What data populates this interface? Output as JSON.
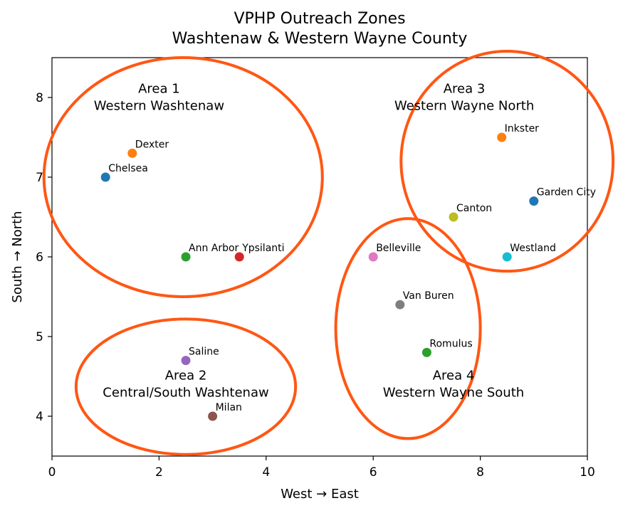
{
  "chart_data": {
    "type": "scatter",
    "title": [
      "VPHP Outreach Zones",
      "Washtenaw & Western Wayne County"
    ],
    "xlabel": "West → East",
    "ylabel": "South → North",
    "xlim": [
      0,
      10
    ],
    "ylim": [
      3.5,
      8.5
    ],
    "xticks": [
      0,
      2,
      4,
      6,
      8,
      10
    ],
    "yticks": [
      4,
      5,
      6,
      7,
      8
    ],
    "grid": false,
    "points": [
      {
        "name": "Chelsea",
        "x": 1.0,
        "y": 7.0,
        "color": "#1f77b4"
      },
      {
        "name": "Dexter",
        "x": 1.5,
        "y": 7.3,
        "color": "#ff7f0e"
      },
      {
        "name": "Ann Arbor",
        "x": 2.5,
        "y": 6.0,
        "color": "#2ca02c"
      },
      {
        "name": "Ypsilanti",
        "x": 3.5,
        "y": 6.0,
        "color": "#d62728"
      },
      {
        "name": "Saline",
        "x": 2.5,
        "y": 4.7,
        "color": "#9467bd"
      },
      {
        "name": "Milan",
        "x": 3.0,
        "y": 4.0,
        "color": "#8c564b"
      },
      {
        "name": "Belleville",
        "x": 6.0,
        "y": 6.0,
        "color": "#e377c2"
      },
      {
        "name": "Van Buren",
        "x": 6.5,
        "y": 5.4,
        "color": "#7f7f7f"
      },
      {
        "name": "Canton",
        "x": 7.5,
        "y": 6.5,
        "color": "#bcbd22"
      },
      {
        "name": "Westland",
        "x": 8.5,
        "y": 6.0,
        "color": "#17becf"
      },
      {
        "name": "Garden City",
        "x": 9.0,
        "y": 6.7,
        "color": "#1f77b4"
      },
      {
        "name": "Inkster",
        "x": 8.4,
        "y": 7.5,
        "color": "#ff7f0e"
      },
      {
        "name": "Romulus",
        "x": 7.0,
        "y": 4.8,
        "color": "#2ca02c"
      }
    ],
    "zones": [
      {
        "label": [
          "Area 1",
          "Western Washtenaw"
        ],
        "label_x": 2.0,
        "label_y": 7.97,
        "center_x": 2.45,
        "center_y": 7.0,
        "radius_x": 2.6,
        "radius_y": 1.5
      },
      {
        "label": [
          "Area 2",
          "Central/South Washtenaw"
        ],
        "label_x": 2.5,
        "label_y": 4.37,
        "center_x": 2.5,
        "center_y": 4.37,
        "radius_x": 2.05,
        "radius_y": 0.85
      },
      {
        "label": [
          "Area 3",
          "Western Wayne North"
        ],
        "label_x": 7.7,
        "label_y": 7.97,
        "center_x": 8.5,
        "center_y": 7.2,
        "radius_x": 1.98,
        "radius_y": 1.38
      },
      {
        "label": [
          "Area 4",
          "Western Wayne South"
        ],
        "label_x": 7.5,
        "label_y": 4.37,
        "center_x": 6.65,
        "center_y": 5.1,
        "radius_x": 1.35,
        "radius_y": 1.38
      }
    ],
    "zone_color": "#ff5714"
  }
}
